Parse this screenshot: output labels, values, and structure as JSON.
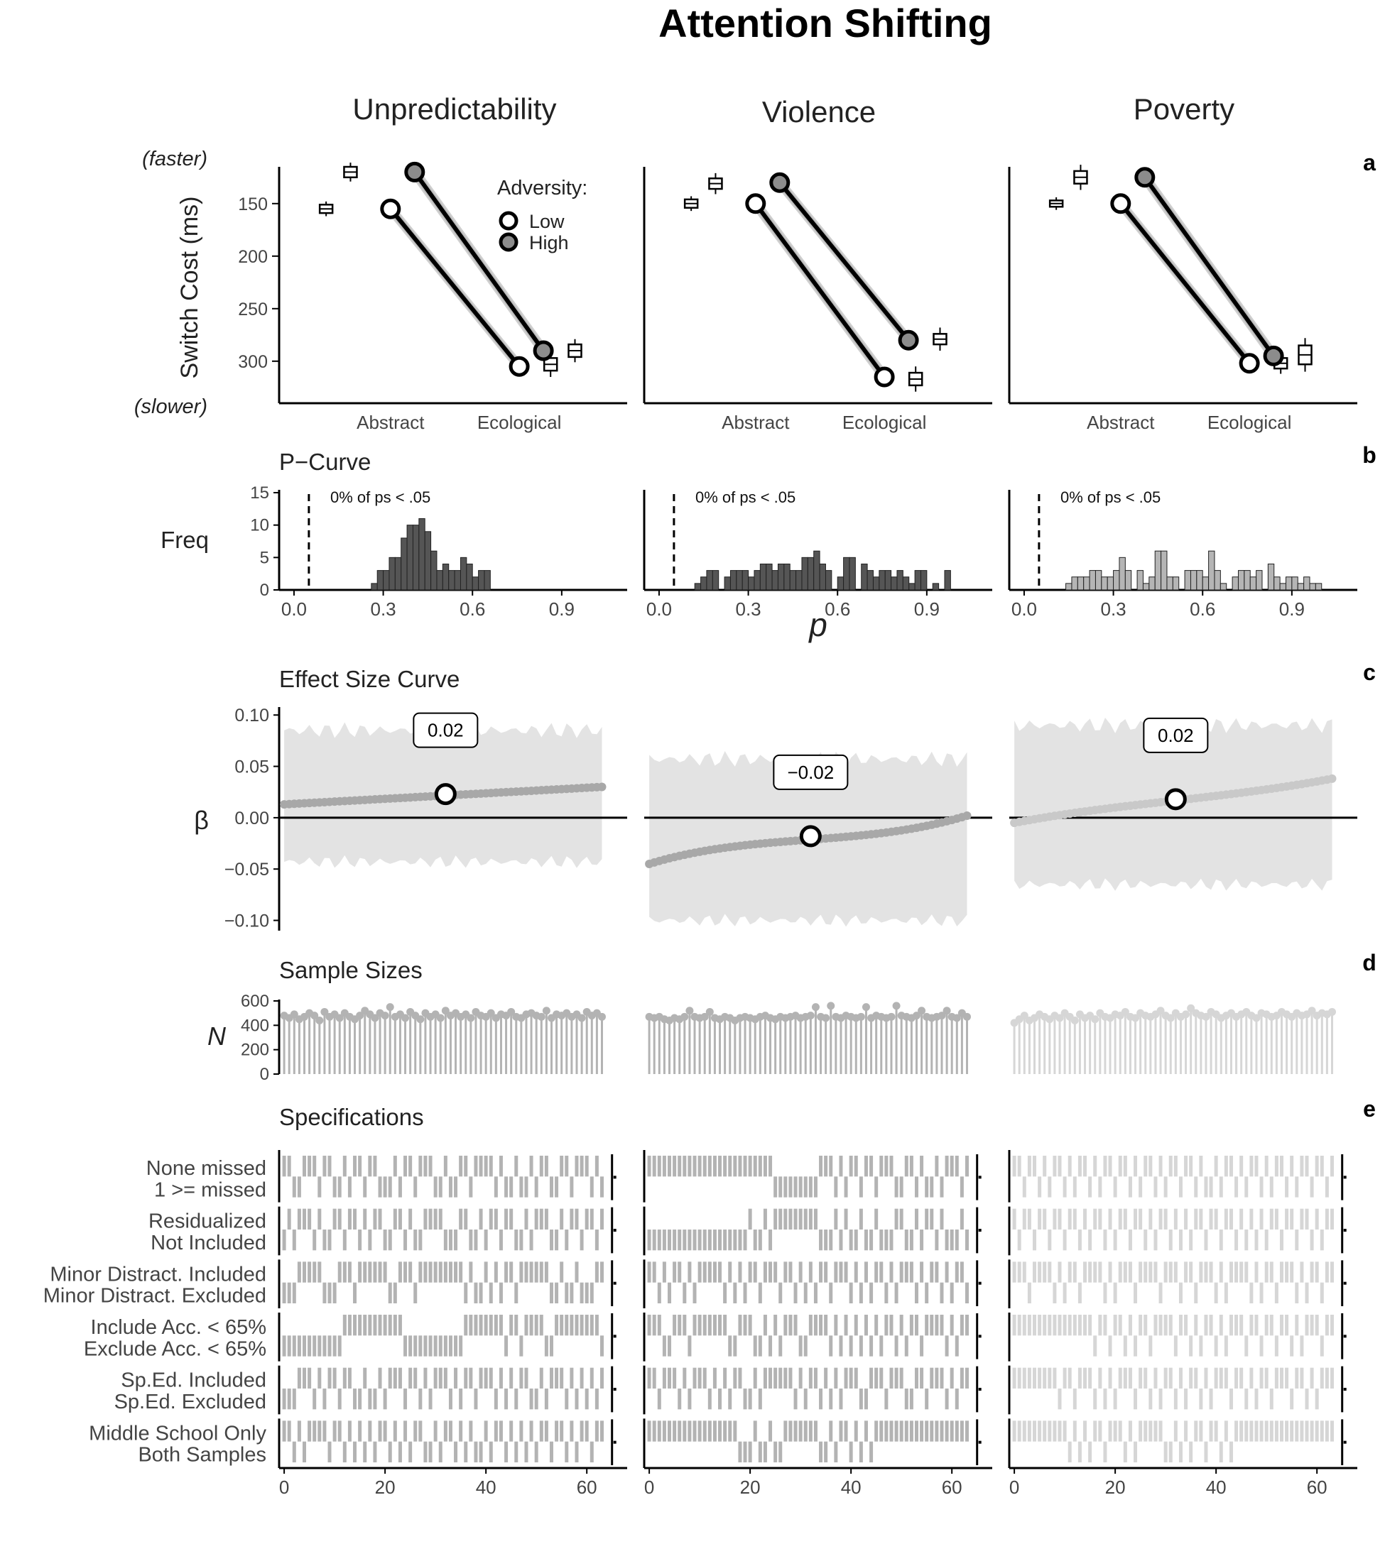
{
  "figure_title": "Attention Shifting",
  "columns": [
    "Unpredictability",
    "Violence",
    "Poverty"
  ],
  "panel_letters": [
    "a",
    "b",
    "c",
    "d",
    "e"
  ],
  "colors": {
    "low_fill": "#ffffff",
    "high_fill": "#8c8c8c",
    "line": "#000000",
    "halo": "#b0b0b0",
    "ribbon": "#e3e3e3",
    "curve_dots": [
      "#a8a8a8",
      "#a8a8a8",
      "#c9c9c9"
    ],
    "hist_bars": [
      "#555555",
      "#555555",
      "#b5b5b5"
    ],
    "lollipops": [
      "#b3b3b3",
      "#b3b3b3",
      "#d6d6d6"
    ],
    "spec_bars": [
      "#b3b3b3",
      "#b3b3b3",
      "#d6d6d6"
    ]
  },
  "chart_data": [
    {
      "id": "a",
      "type": "line",
      "title": "",
      "ylabel": "Switch Cost (ms)",
      "y_top_note": "(faster)",
      "y_bottom_note": "(slower)",
      "y_reversed": true,
      "ylim": [
        115,
        340
      ],
      "yticks": [
        150,
        200,
        250,
        300
      ],
      "categories": [
        "Abstract",
        "Ecological"
      ],
      "legend": {
        "title": "Adversity:",
        "items": [
          "Low",
          "High"
        ],
        "placement": "top-right of first panel"
      },
      "panels": [
        {
          "column": "Unpredictability",
          "series": [
            {
              "name": "Low",
              "values": [
                155,
                305
              ]
            },
            {
              "name": "High",
              "values": [
                120,
                290
              ]
            }
          ],
          "boxes": [
            {
              "value": 155,
              "half": 4,
              "whisker": 7
            },
            {
              "value": 120,
              "half": 5,
              "whisker": 9
            },
            {
              "value": 303,
              "half": 6,
              "whisker": 12
            },
            {
              "value": 290,
              "half": 6,
              "whisker": 11
            }
          ]
        },
        {
          "column": "Violence",
          "series": [
            {
              "name": "Low",
              "values": [
                150,
                315
              ]
            },
            {
              "name": "High",
              "values": [
                130,
                280
              ]
            }
          ],
          "boxes": [
            {
              "value": 150,
              "half": 4,
              "whisker": 7
            },
            {
              "value": 131,
              "half": 5,
              "whisker": 10
            },
            {
              "value": 317,
              "half": 6,
              "whisker": 12
            },
            {
              "value": 279,
              "half": 5,
              "whisker": 11
            }
          ]
        },
        {
          "column": "Poverty",
          "series": [
            {
              "name": "Low",
              "values": [
                150,
                302
              ]
            },
            {
              "name": "High",
              "values": [
                125,
                295
              ]
            }
          ],
          "boxes": [
            {
              "value": 150,
              "half": 3,
              "whisker": 6
            },
            {
              "value": 125,
              "half": 6,
              "whisker": 12
            },
            {
              "value": 302,
              "half": 5,
              "whisker": 10
            },
            {
              "value": 294,
              "half": 9,
              "whisker": 16
            }
          ]
        }
      ]
    },
    {
      "id": "b",
      "type": "bar",
      "title": "P−Curve",
      "xlabel": "p",
      "ylabel": "Freq",
      "xlim": [
        -0.05,
        1.12
      ],
      "ylim": [
        0,
        15
      ],
      "xticks": [
        "0.0",
        "0.3",
        "0.6",
        "0.9"
      ],
      "yticks": [
        0,
        5,
        10,
        15
      ],
      "threshold": 0.05,
      "bin_width": 0.02,
      "panels": [
        {
          "column": "Unpredictability",
          "annotation": "0% of ps < .05",
          "bins": [
            [
              0.27,
              1
            ],
            [
              0.29,
              3
            ],
            [
              0.31,
              3
            ],
            [
              0.33,
              5
            ],
            [
              0.35,
              5
            ],
            [
              0.37,
              8
            ],
            [
              0.39,
              10
            ],
            [
              0.41,
              10
            ],
            [
              0.43,
              11
            ],
            [
              0.45,
              9
            ],
            [
              0.47,
              6
            ],
            [
              0.49,
              3
            ],
            [
              0.51,
              4
            ],
            [
              0.53,
              3
            ],
            [
              0.55,
              3
            ],
            [
              0.57,
              5
            ],
            [
              0.59,
              4
            ],
            [
              0.61,
              2
            ],
            [
              0.63,
              3
            ],
            [
              0.65,
              3
            ]
          ]
        },
        {
          "column": "Violence",
          "annotation": "0% of ps < .05",
          "bins": [
            [
              0.13,
              1
            ],
            [
              0.15,
              2
            ],
            [
              0.17,
              3
            ],
            [
              0.19,
              3
            ],
            [
              0.23,
              2
            ],
            [
              0.25,
              3
            ],
            [
              0.27,
              3
            ],
            [
              0.29,
              3
            ],
            [
              0.31,
              2
            ],
            [
              0.33,
              3
            ],
            [
              0.35,
              4
            ],
            [
              0.37,
              4
            ],
            [
              0.39,
              3
            ],
            [
              0.41,
              4
            ],
            [
              0.43,
              4
            ],
            [
              0.45,
              3
            ],
            [
              0.47,
              3
            ],
            [
              0.49,
              5
            ],
            [
              0.51,
              5
            ],
            [
              0.53,
              6
            ],
            [
              0.55,
              4
            ],
            [
              0.57,
              3
            ],
            [
              0.61,
              2
            ],
            [
              0.63,
              5
            ],
            [
              0.65,
              5
            ],
            [
              0.69,
              4
            ],
            [
              0.71,
              3
            ],
            [
              0.73,
              2
            ],
            [
              0.75,
              3
            ],
            [
              0.77,
              3
            ],
            [
              0.79,
              2
            ],
            [
              0.81,
              3
            ],
            [
              0.83,
              2
            ],
            [
              0.85,
              1
            ],
            [
              0.87,
              3
            ],
            [
              0.89,
              3
            ],
            [
              0.93,
              1
            ],
            [
              0.97,
              3
            ]
          ]
        },
        {
          "column": "Poverty",
          "annotation": "0% of ps < .05",
          "bins": [
            [
              0.15,
              1
            ],
            [
              0.17,
              2
            ],
            [
              0.19,
              2
            ],
            [
              0.21,
              2
            ],
            [
              0.23,
              3
            ],
            [
              0.25,
              3
            ],
            [
              0.27,
              2
            ],
            [
              0.29,
              2
            ],
            [
              0.31,
              3
            ],
            [
              0.33,
              5
            ],
            [
              0.35,
              3
            ],
            [
              0.39,
              3
            ],
            [
              0.41,
              1
            ],
            [
              0.43,
              2
            ],
            [
              0.45,
              6
            ],
            [
              0.47,
              6
            ],
            [
              0.49,
              2
            ],
            [
              0.51,
              2
            ],
            [
              0.55,
              3
            ],
            [
              0.57,
              3
            ],
            [
              0.59,
              3
            ],
            [
              0.61,
              2
            ],
            [
              0.63,
              6
            ],
            [
              0.65,
              3
            ],
            [
              0.67,
              1
            ],
            [
              0.71,
              2
            ],
            [
              0.73,
              3
            ],
            [
              0.75,
              3
            ],
            [
              0.77,
              2
            ],
            [
              0.79,
              3
            ],
            [
              0.83,
              4
            ],
            [
              0.85,
              2
            ],
            [
              0.87,
              1
            ],
            [
              0.89,
              2
            ],
            [
              0.91,
              2
            ],
            [
              0.93,
              1
            ],
            [
              0.95,
              2
            ],
            [
              0.97,
              1
            ],
            [
              0.99,
              1
            ]
          ]
        }
      ]
    },
    {
      "id": "c",
      "type": "line",
      "title": "Effect Size Curve",
      "ylabel": "β",
      "xlim": [
        -1,
        68
      ],
      "ylim": [
        -0.11,
        0.105
      ],
      "yticks": [
        0.1,
        0.05,
        0.0,
        -0.05,
        -0.1
      ],
      "ytick_labels": [
        "0.10",
        "0.05",
        "0.00",
        "−0.05",
        "−0.10"
      ],
      "panels": [
        {
          "column": "Unpredictability",
          "start": 0.013,
          "end": 0.03,
          "curvature": 0.0,
          "ci_low": -0.043,
          "ci_high": 0.085,
          "median_index": 32,
          "median_value": 0.023,
          "label": "0.02"
        },
        {
          "column": "Violence",
          "start": -0.045,
          "end": 0.002,
          "curvature": 0.012,
          "ci_low": -0.1,
          "ci_high": 0.057,
          "median_index": 32,
          "median_value": -0.018,
          "label": "−0.02"
        },
        {
          "column": "Poverty",
          "start": -0.005,
          "end": 0.038,
          "curvature": 0.004,
          "ci_low": -0.065,
          "ci_high": 0.09,
          "median_index": 32,
          "median_value": 0.018,
          "label": "0.02"
        }
      ]
    },
    {
      "id": "d",
      "type": "bar",
      "title": "Sample Sizes",
      "ylabel": "N",
      "ylim": [
        0,
        600
      ],
      "yticks": [
        0,
        200,
        400,
        600
      ],
      "panels": [
        {
          "column": "Unpredictability",
          "values": [
            480,
            460,
            490,
            450,
            470,
            500,
            480,
            440,
            510,
            470,
            490,
            460,
            500,
            470,
            450,
            480,
            520,
            490,
            460,
            500,
            480,
            550,
            470,
            490,
            460,
            510,
            480,
            450,
            500,
            470,
            490,
            460,
            520,
            480,
            500,
            470,
            490,
            460,
            510,
            480,
            470,
            500,
            460,
            490,
            480,
            510,
            470,
            460,
            490,
            500,
            480,
            470,
            520,
            460,
            490,
            480,
            500,
            470,
            490,
            460,
            510,
            480,
            500,
            470
          ]
        },
        {
          "column": "Violence",
          "values": [
            470,
            460,
            470,
            450,
            440,
            460,
            450,
            470,
            520,
            470,
            460,
            470,
            510,
            460,
            450,
            470,
            460,
            440,
            460,
            470,
            460,
            450,
            470,
            480,
            460,
            450,
            470,
            460,
            470,
            480,
            460,
            470,
            480,
            550,
            470,
            460,
            560,
            470,
            460,
            480,
            470,
            460,
            470,
            550,
            460,
            480,
            470,
            460,
            470,
            560,
            480,
            470,
            460,
            480,
            520,
            470,
            460,
            470,
            480,
            520,
            470,
            460,
            500,
            470
          ]
        },
        {
          "column": "Poverty",
          "values": [
            420,
            450,
            480,
            440,
            460,
            490,
            470,
            450,
            480,
            460,
            500,
            470,
            440,
            490,
            460,
            480,
            450,
            500,
            470,
            460,
            490,
            480,
            510,
            470,
            460,
            500,
            480,
            470,
            490,
            520,
            480,
            460,
            500,
            470,
            490,
            540,
            500,
            480,
            470,
            510,
            490,
            460,
            480,
            500,
            470,
            490,
            510,
            480,
            460,
            500,
            490,
            470,
            480,
            510,
            490,
            470,
            500,
            480,
            490,
            520,
            480,
            500,
            490,
            510
          ]
        }
      ]
    },
    {
      "id": "e",
      "type": "heatmap",
      "title": "Specifications",
      "xlim": [
        -1,
        68
      ],
      "xticks": [
        0,
        20,
        40,
        60
      ],
      "row_labels": [
        "None missed",
        "1 >= missed",
        "Residualized",
        "Not Included",
        "Minor Distract. Included",
        "Minor Distract. Excluded",
        "Include Acc. < 65%",
        "Exclude Acc. < 65%",
        "Sp.Ed. Included",
        "Sp.Ed. Excluded",
        "Middle School Only",
        "Both Samples"
      ],
      "n_specs": 64,
      "panels": [
        {
          "column": "Unpredictability",
          "pattern": [
            "1100111011001011011000101101110010011011110100100101100110111010",
            "0101110100110110101100110100111100011001011011001011100101101101",
            "0001111100011101111110011101111111110100101011011111100100100011",
            "0000000000001111111111110000000000001111111101101111001111111110",
            "0001110101101100100101110110101110101101110101011001011101010101",
            "1101011110110101010110101011001011010100101101010101101101011011"
          ]
        },
        {
          "column": "Violence",
          "pattern": [
            "1111111111111111111111111000000000111010110110111001101001011101",
            "0000000000000000000010010111111111000101001001000110010110100010",
            "1101011010111110101011011101101010110111010101101011101011010110",
            "1110011101111111001110010101110011110101010101011010110111101011",
            "1101110101110101011001011111101011010101110011101110011011101011",
            "1111111111111111110001001001111111001011010101111111111111111111"
          ]
        },
        {
          "column": "Poverty",
          "pattern": [
            "1101101011010110101101101011010110110100101101011010110101101101",
            "1011011011011010110101101101011010101101101101010101101101101011",
            "1110111101011011110101110111101110110111010111101011011101011011",
            "1111111111111111011011010110111101101011010111011011011010111011",
            "1111111110110111010101110110101101011010111011010110111011010111",
            "1111111111101010110111010111110010101101101011111111111111111111"
          ]
        }
      ]
    }
  ]
}
